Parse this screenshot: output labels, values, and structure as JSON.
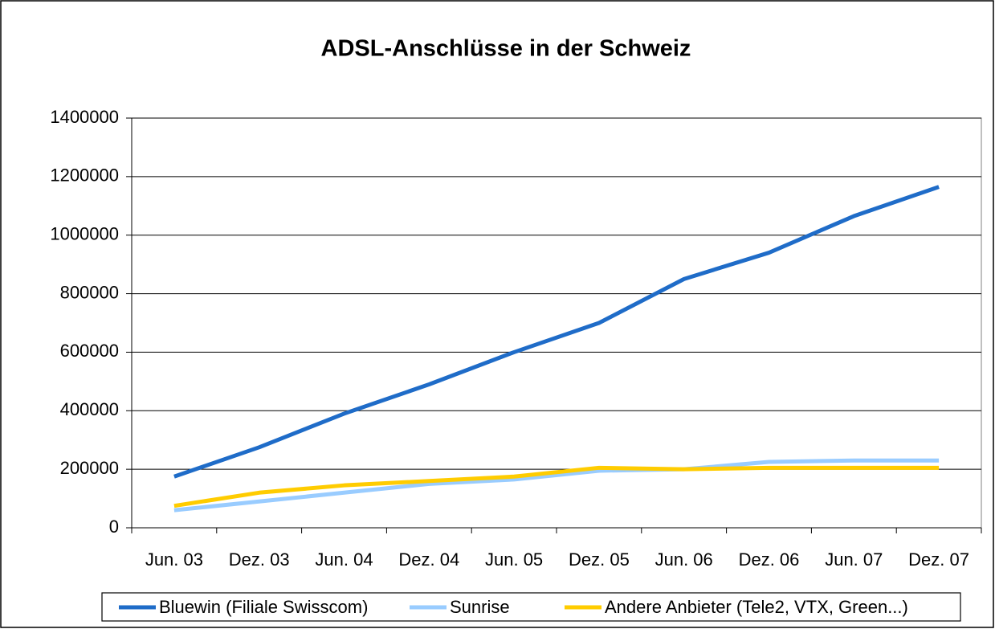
{
  "chart_data": {
    "type": "line",
    "title": "ADSL-Anschlüsse in der Schweiz",
    "categories": [
      "Jun. 03",
      "Dez. 03",
      "Jun. 04",
      "Dez. 04",
      "Jun. 05",
      "Dez. 05",
      "Jun. 06",
      "Dez. 06",
      "Jun. 07",
      "Dez. 07"
    ],
    "series": [
      {
        "name": "Bluewin (Filiale Swisscom)",
        "color": "#1f6cc8",
        "values": [
          175000,
          275000,
          390000,
          490000,
          600000,
          700000,
          850000,
          940000,
          1065000,
          1165000
        ]
      },
      {
        "name": "Sunrise",
        "color": "#99ccff",
        "values": [
          60000,
          90000,
          120000,
          150000,
          165000,
          195000,
          200000,
          225000,
          230000,
          230000
        ]
      },
      {
        "name": "Andere Anbieter (Tele2, VTX, Green...)",
        "color": "#ffcc00",
        "values": [
          75000,
          120000,
          145000,
          160000,
          175000,
          205000,
          200000,
          205000,
          205000,
          205000
        ]
      }
    ],
    "ylim": [
      0,
      1400000
    ],
    "yticks": [
      0,
      200000,
      400000,
      600000,
      800000,
      1000000,
      1200000,
      1400000
    ],
    "grid": true,
    "legend": "bottom"
  }
}
